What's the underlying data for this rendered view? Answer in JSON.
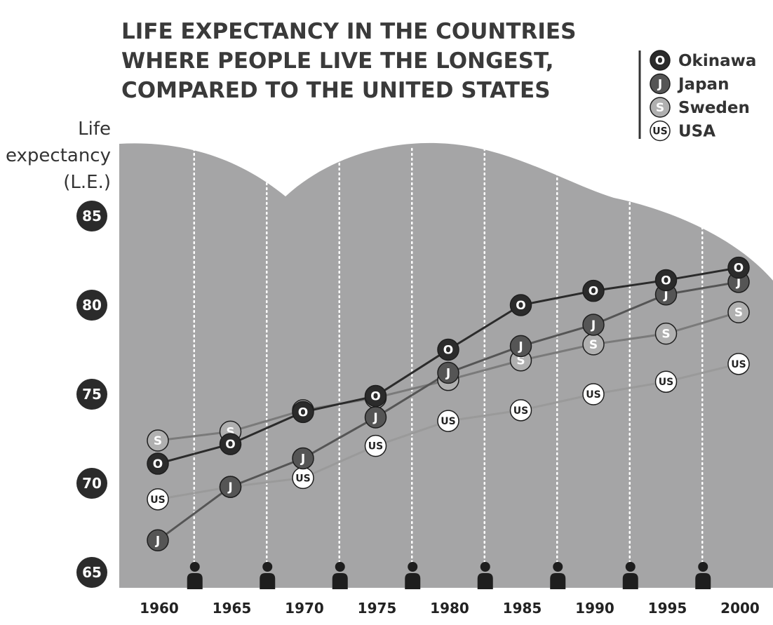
{
  "chart_data": {
    "type": "line",
    "title_lines": [
      "LIFE EXPECTANCY IN THE COUNTRIES",
      "WHERE PEOPLE LIVE THE LONGEST,",
      "COMPARED TO THE UNITED STATES"
    ],
    "ylabel_lines": [
      "Life",
      "expectancy",
      "(L.E.)"
    ],
    "xlabel": "",
    "x": [
      1960,
      1965,
      1970,
      1975,
      1980,
      1985,
      1990,
      1995,
      2000
    ],
    "ylim": [
      65,
      85
    ],
    "yticks": [
      65,
      70,
      75,
      80,
      85
    ],
    "legend_position": "top-right",
    "series": [
      {
        "name": "Okinawa",
        "symbol": "O",
        "color": "#2b2b2b",
        "text_color": "#ffffff",
        "line_color": "#2b2b2b",
        "values": [
          71.1,
          72.2,
          74.0,
          74.9,
          77.5,
          80.0,
          80.8,
          81.4,
          82.1
        ]
      },
      {
        "name": "Japan",
        "symbol": "J",
        "color": "#555555",
        "text_color": "#ffffff",
        "line_color": "#555555",
        "values": [
          66.8,
          69.8,
          71.4,
          73.7,
          76.2,
          77.7,
          78.9,
          80.6,
          81.3
        ]
      },
      {
        "name": "Sweden",
        "symbol": "S",
        "color": "#b0b0b0",
        "text_color": "#ffffff",
        "line_color": "#7a7a7a",
        "values": [
          72.4,
          72.9,
          74.1,
          74.8,
          75.8,
          76.9,
          77.8,
          78.4,
          79.6
        ]
      },
      {
        "name": "USA",
        "symbol": "US",
        "color": "#ffffff",
        "text_color": "#222222",
        "line_color": "#9a9a9a",
        "values": [
          69.1,
          69.8,
          70.3,
          72.1,
          73.5,
          74.1,
          75.0,
          75.7,
          76.7
        ]
      }
    ]
  }
}
